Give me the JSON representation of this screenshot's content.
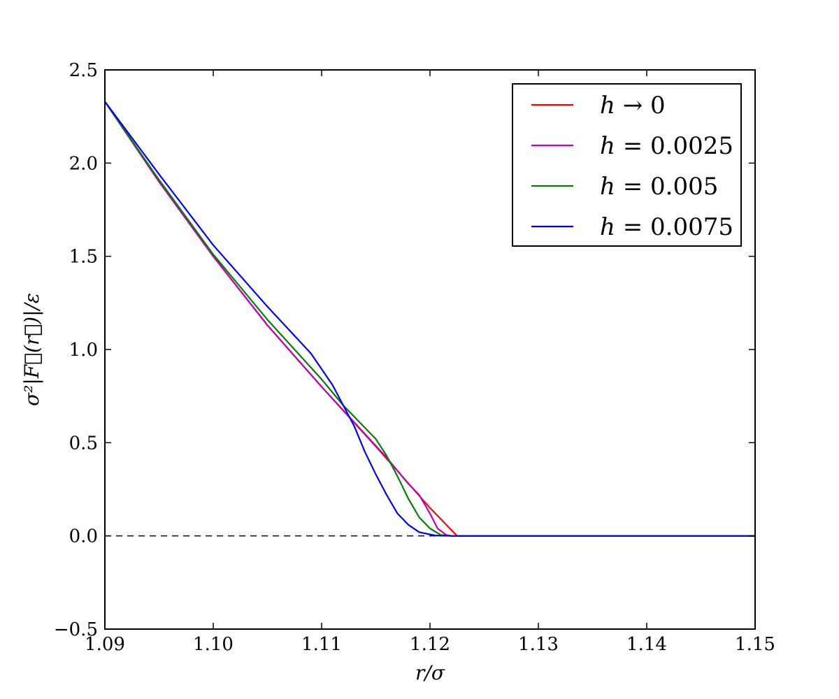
{
  "chart_data": {
    "type": "line",
    "xlabel": "r/σ",
    "ylabel": "σ²|F⃗(r⃗)|/ε",
    "xlim": [
      1.09,
      1.15
    ],
    "ylim": [
      -0.5,
      2.5
    ],
    "x_ticks": [
      "1.09",
      "1.10",
      "1.11",
      "1.12",
      "1.13",
      "1.14",
      "1.15"
    ],
    "y_ticks": [
      "−0.5",
      "0.0",
      "0.5",
      "1.0",
      "1.5",
      "2.0",
      "2.5"
    ],
    "grid": false,
    "legend_position": "top-right",
    "reference_line": {
      "y": 0.0,
      "style": "dashed",
      "color": "#000000"
    },
    "series": [
      {
        "name": "h → 0",
        "legend_var": "h",
        "legend_rest": " → 0",
        "color": "#ff0000",
        "points": [
          [
            1.09,
            2.33
          ],
          [
            1.095,
            1.9
          ],
          [
            1.1,
            1.5
          ],
          [
            1.105,
            1.13
          ],
          [
            1.11,
            0.8
          ],
          [
            1.115,
            0.48
          ],
          [
            1.12,
            0.15
          ],
          [
            1.1225,
            0.0
          ],
          [
            1.15,
            0.0
          ]
        ]
      },
      {
        "name": "h = 0.0025",
        "legend_var": "h",
        "legend_rest": " = 0.0025",
        "color": "#bf00bf",
        "points": [
          [
            1.09,
            2.33
          ],
          [
            1.095,
            1.9
          ],
          [
            1.1,
            1.5
          ],
          [
            1.105,
            1.13
          ],
          [
            1.11,
            0.8
          ],
          [
            1.113,
            0.61
          ],
          [
            1.116,
            0.42
          ],
          [
            1.118,
            0.28
          ],
          [
            1.119,
            0.22
          ],
          [
            1.12,
            0.12
          ],
          [
            1.1207,
            0.04
          ],
          [
            1.1215,
            0.005
          ],
          [
            1.122,
            0.0
          ],
          [
            1.15,
            0.0
          ]
        ]
      },
      {
        "name": "h = 0.005",
        "legend_var": "h",
        "legend_rest": " = 0.005",
        "color": "#008000",
        "points": [
          [
            1.09,
            2.33
          ],
          [
            1.095,
            1.91
          ],
          [
            1.1,
            1.51
          ],
          [
            1.105,
            1.16
          ],
          [
            1.11,
            0.84
          ],
          [
            1.112,
            0.7
          ],
          [
            1.114,
            0.58
          ],
          [
            1.115,
            0.52
          ],
          [
            1.116,
            0.43
          ],
          [
            1.117,
            0.32
          ],
          [
            1.118,
            0.2
          ],
          [
            1.119,
            0.1
          ],
          [
            1.12,
            0.04
          ],
          [
            1.121,
            0.005
          ],
          [
            1.122,
            0.0
          ],
          [
            1.15,
            0.0
          ]
        ]
      },
      {
        "name": "h = 0.0075",
        "legend_var": "h",
        "legend_rest": " = 0.0075",
        "color": "#0000ff",
        "points": [
          [
            1.09,
            2.33
          ],
          [
            1.095,
            1.94
          ],
          [
            1.1,
            1.56
          ],
          [
            1.105,
            1.23
          ],
          [
            1.109,
            0.98
          ],
          [
            1.111,
            0.81
          ],
          [
            1.112,
            0.7
          ],
          [
            1.113,
            0.59
          ],
          [
            1.114,
            0.45
          ],
          [
            1.115,
            0.33
          ],
          [
            1.116,
            0.22
          ],
          [
            1.117,
            0.12
          ],
          [
            1.118,
            0.06
          ],
          [
            1.119,
            0.02
          ],
          [
            1.1205,
            0.002
          ],
          [
            1.122,
            0.0
          ],
          [
            1.15,
            0.0
          ]
        ]
      }
    ]
  }
}
